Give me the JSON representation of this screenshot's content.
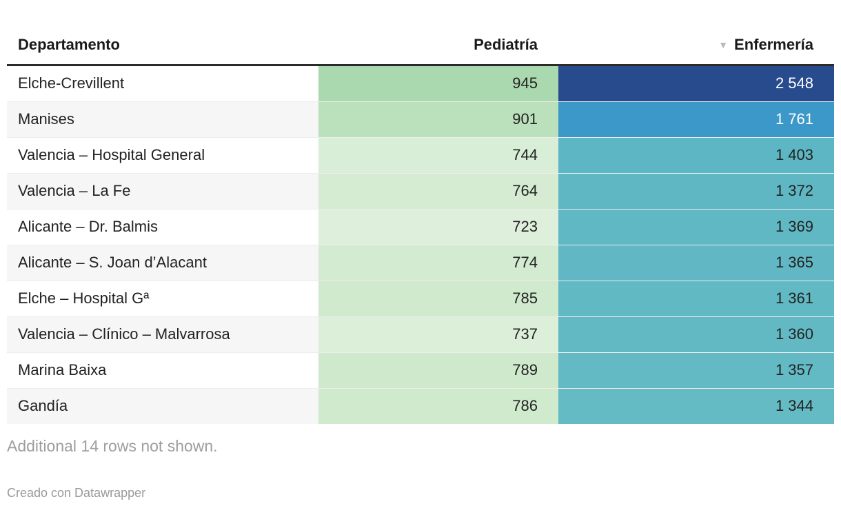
{
  "chart_data": {
    "type": "table",
    "title": "",
    "columns": [
      {
        "label": "Departamento",
        "align": "left",
        "sorted": false
      },
      {
        "label": "Pediatría",
        "align": "right",
        "sorted": false
      },
      {
        "label": "Enfermería",
        "align": "right",
        "sorted": true,
        "sort_order": "descending"
      }
    ],
    "rows": [
      {
        "departamento": "Elche-Crevillent",
        "pediatria": {
          "value": 945,
          "display": "945",
          "color": "#abd9af",
          "text_color": "#222222"
        },
        "enfermeria": {
          "value": 2548,
          "display": "2 548",
          "color": "#274b8d",
          "text_color": "#ffffff"
        }
      },
      {
        "departamento": "Manises",
        "pediatria": {
          "value": 901,
          "display": "901",
          "color": "#bae0bc",
          "text_color": "#222222"
        },
        "enfermeria": {
          "value": 1761,
          "display": "1 761",
          "color": "#3c98c8",
          "text_color": "#ffffff"
        }
      },
      {
        "departamento": "Valencia – Hospital General",
        "pediatria": {
          "value": 744,
          "display": "744",
          "color": "#d9eed7",
          "text_color": "#222222"
        },
        "enfermeria": {
          "value": 1403,
          "display": "1 403",
          "color": "#5db6c4",
          "text_color": "#222222"
        }
      },
      {
        "departamento": "Valencia – La Fe",
        "pediatria": {
          "value": 764,
          "display": "764",
          "color": "#d5ecd3",
          "text_color": "#222222"
        },
        "enfermeria": {
          "value": 1372,
          "display": "1 372",
          "color": "#5fb7c4",
          "text_color": "#222222"
        }
      },
      {
        "departamento": "Alicante – Dr. Balmis",
        "pediatria": {
          "value": 723,
          "display": "723",
          "color": "#def0dc",
          "text_color": "#222222"
        },
        "enfermeria": {
          "value": 1369,
          "display": "1 369",
          "color": "#60b8c4",
          "text_color": "#222222"
        }
      },
      {
        "departamento": "Alicante – S. Joan d’Alacant",
        "pediatria": {
          "value": 774,
          "display": "774",
          "color": "#d3ebd1",
          "text_color": "#222222"
        },
        "enfermeria": {
          "value": 1365,
          "display": "1 365",
          "color": "#61b8c4",
          "text_color": "#222222"
        }
      },
      {
        "departamento": "Elche – Hospital Gª",
        "pediatria": {
          "value": 785,
          "display": "785",
          "color": "#d0eace",
          "text_color": "#222222"
        },
        "enfermeria": {
          "value": 1361,
          "display": "1 361",
          "color": "#61b9c4",
          "text_color": "#222222"
        }
      },
      {
        "departamento": "Valencia – Clínico – Malvarrosa",
        "pediatria": {
          "value": 737,
          "display": "737",
          "color": "#dbefd9",
          "text_color": "#222222"
        },
        "enfermeria": {
          "value": 1360,
          "display": "1 360",
          "color": "#62b9c4",
          "text_color": "#222222"
        }
      },
      {
        "departamento": "Marina Baixa",
        "pediatria": {
          "value": 789,
          "display": "789",
          "color": "#cfe9cd",
          "text_color": "#222222"
        },
        "enfermeria": {
          "value": 1357,
          "display": "1 357",
          "color": "#63b9c4",
          "text_color": "#222222"
        }
      },
      {
        "departamento": "Gandía",
        "pediatria": {
          "value": 786,
          "display": "786",
          "color": "#d0eace",
          "text_color": "#222222"
        },
        "enfermeria": {
          "value": 1344,
          "display": "1 344",
          "color": "#65bbc3",
          "text_color": "#222222"
        }
      }
    ],
    "layout_hints": {
      "heatmap_pediatria_scale": [
        "#def0dc",
        "#a9d8ad"
      ],
      "heatmap_enfermeria_scale": [
        "#66bbc3",
        "#274b8d"
      ],
      "zebra_color": "#f6f6f6",
      "header_border_color": "#2b2b2b"
    }
  },
  "icons": {
    "sort_desc": "▼"
  },
  "footer": {
    "note": "Additional 14 rows not shown.",
    "credit": "Creado con Datawrapper"
  }
}
